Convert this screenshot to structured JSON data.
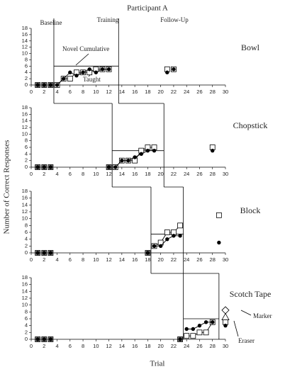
{
  "title": "Participant A",
  "phase_labels": [
    "Baseline",
    "Training",
    "Follow-Up"
  ],
  "y_label": "Number of Correct Responses",
  "x_label": "Trial",
  "chart_data": [
    {
      "type": "scatter",
      "title": "Bowl",
      "xlim": [
        0,
        30
      ],
      "ylim": [
        0,
        18
      ],
      "xticks": [
        0,
        2,
        4,
        6,
        8,
        10,
        12,
        14,
        16,
        18,
        20,
        22,
        24,
        26,
        28,
        30
      ],
      "yticks": [
        0,
        2,
        4,
        6,
        8,
        10,
        12,
        14,
        16,
        18
      ],
      "phase_changes": [
        3.5,
        13.5
      ],
      "criterion": {
        "value": 6,
        "x": [
          3.5,
          13.5
        ]
      },
      "series": [
        {
          "name": "Novel Cumulative",
          "marker": "square",
          "color": "#000000",
          "x": [
            1,
            2,
            3,
            4,
            5,
            6,
            7,
            8,
            9,
            10,
            11,
            12,
            21,
            22
          ],
          "values": [
            0,
            0,
            0,
            0,
            2,
            2,
            4,
            4,
            4,
            5,
            5,
            5,
            5,
            5
          ]
        },
        {
          "name": "Taught",
          "marker": "circle",
          "color": "#000000",
          "x": [
            1,
            2,
            3,
            4,
            5,
            6,
            7,
            8,
            9,
            10,
            11,
            12,
            21,
            22
          ],
          "values": [
            0,
            0,
            0,
            0,
            2,
            4,
            3,
            4,
            5,
            4,
            5,
            5,
            4,
            5
          ]
        }
      ]
    },
    {
      "type": "scatter",
      "title": "Chopstick",
      "xlim": [
        0,
        30
      ],
      "ylim": [
        0,
        18
      ],
      "xticks": [
        0,
        2,
        4,
        6,
        8,
        10,
        12,
        14,
        16,
        18,
        20,
        22,
        24,
        26,
        28,
        30
      ],
      "yticks": [
        0,
        2,
        4,
        6,
        8,
        10,
        12,
        14,
        16,
        18
      ],
      "phase_changes": [
        12.5,
        20.5
      ],
      "criterion": {
        "value": 5,
        "x": [
          12.5,
          20.5
        ]
      },
      "series": [
        {
          "marker": "square",
          "color": "#000000",
          "x": [
            1,
            2,
            3,
            12,
            13,
            14,
            15,
            16,
            17,
            18,
            19,
            28
          ],
          "values": [
            0,
            0,
            0,
            0,
            0,
            2,
            2,
            2,
            5,
            6,
            6,
            6
          ]
        },
        {
          "marker": "circle",
          "color": "#000000",
          "x": [
            1,
            2,
            3,
            12,
            13,
            14,
            15,
            16,
            17,
            18,
            19,
            28
          ],
          "values": [
            0,
            0,
            0,
            0,
            0,
            2,
            2,
            3,
            4,
            5,
            5,
            5
          ]
        }
      ]
    },
    {
      "type": "scatter",
      "title": "Block",
      "xlim": [
        0,
        30
      ],
      "ylim": [
        0,
        18
      ],
      "xticks": [
        0,
        2,
        4,
        6,
        8,
        10,
        12,
        14,
        16,
        18,
        20,
        22,
        24,
        26,
        28,
        30
      ],
      "yticks": [
        0,
        2,
        4,
        6,
        8,
        10,
        12,
        14,
        16,
        18
      ],
      "phase_changes": [
        18.5,
        23.5
      ],
      "criterion": {
        "value": 5.5,
        "x": [
          18.5,
          23.5
        ]
      },
      "series": [
        {
          "marker": "square",
          "color": "#000000",
          "x": [
            1,
            2,
            3,
            18,
            19,
            20,
            21,
            22,
            23,
            29
          ],
          "values": [
            0,
            0,
            0,
            0,
            2,
            3,
            6,
            6,
            8,
            11
          ]
        },
        {
          "marker": "circle",
          "color": "#000000",
          "x": [
            1,
            2,
            3,
            18,
            19,
            20,
            21,
            22,
            23,
            29
          ],
          "values": [
            0,
            0,
            0,
            0,
            2,
            2,
            4,
            5,
            5,
            3
          ]
        }
      ]
    },
    {
      "type": "scatter",
      "title": "Scotch Tape",
      "xlim": [
        0,
        30
      ],
      "ylim": [
        0,
        18
      ],
      "xticks": [
        0,
        2,
        4,
        6,
        8,
        10,
        12,
        14,
        16,
        18,
        20,
        22,
        24,
        26,
        28,
        30
      ],
      "yticks": [
        0,
        2,
        4,
        6,
        8,
        10,
        12,
        14,
        16,
        18
      ],
      "phase_changes": [
        23.5,
        29
      ],
      "criterion": {
        "value": 6,
        "x": [
          23.5,
          29
        ]
      },
      "series": [
        {
          "marker": "square",
          "color": "#000000",
          "x": [
            1,
            2,
            3,
            23,
            24,
            25,
            26,
            27,
            28,
            30
          ],
          "values": [
            0,
            0,
            0,
            0,
            1,
            1,
            2,
            2,
            5,
            5
          ]
        },
        {
          "marker": "circle",
          "color": "#000000",
          "x": [
            1,
            2,
            3,
            23,
            24,
            25,
            26,
            27,
            28,
            30
          ],
          "values": [
            0,
            0,
            0,
            0,
            3,
            3,
            4,
            5,
            5,
            4
          ]
        },
        {
          "name": "Marker",
          "marker": "diamond",
          "color": "#000000",
          "x": [
            30
          ],
          "values": [
            8.5
          ]
        },
        {
          "name": "Eraser",
          "marker": "triangle",
          "color": "#000000",
          "x": [
            30
          ],
          "values": [
            6.5
          ]
        }
      ]
    }
  ]
}
